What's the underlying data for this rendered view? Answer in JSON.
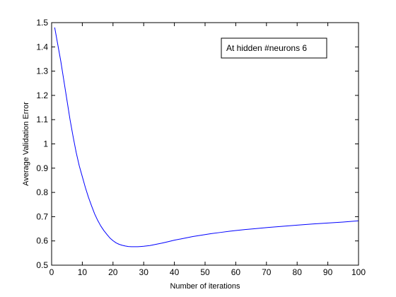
{
  "chart_data": {
    "type": "line",
    "title": "",
    "xlabel": "Number of iterations",
    "ylabel": "Average Validation Error",
    "xlim": [
      0,
      100
    ],
    "ylim": [
      0.5,
      1.5
    ],
    "xticks": [
      "0",
      "10",
      "20",
      "30",
      "40",
      "50",
      "60",
      "70",
      "80",
      "90",
      "100"
    ],
    "yticks": [
      "0.5",
      "0.6",
      "0.7",
      "0.8",
      "0.9",
      "1",
      "1.1",
      "1.2",
      "1.3",
      "1.4",
      "1.5"
    ],
    "grid": false,
    "legend": {
      "text": "At hidden #neurons 6",
      "position": "top-right"
    },
    "series": [
      {
        "color": "#0000ff",
        "x": [
          1,
          2,
          3,
          4,
          5,
          6,
          7,
          8,
          9,
          10,
          11,
          12,
          13,
          14,
          15,
          16,
          17,
          18,
          19,
          20,
          21,
          22,
          23,
          24,
          25,
          26,
          27,
          28,
          29,
          30,
          32,
          34,
          36,
          38,
          40,
          42,
          44,
          46,
          48,
          50,
          52,
          55,
          58,
          60,
          63,
          66,
          70,
          75,
          80,
          85,
          90,
          95,
          100
        ],
        "y": [
          1.48,
          1.41,
          1.34,
          1.26,
          1.18,
          1.1,
          1.03,
          0.965,
          0.91,
          0.865,
          0.82,
          0.78,
          0.745,
          0.712,
          0.685,
          0.662,
          0.643,
          0.627,
          0.612,
          0.601,
          0.592,
          0.586,
          0.582,
          0.579,
          0.577,
          0.576,
          0.576,
          0.576,
          0.577,
          0.578,
          0.581,
          0.586,
          0.591,
          0.597,
          0.603,
          0.608,
          0.613,
          0.618,
          0.622,
          0.626,
          0.63,
          0.635,
          0.64,
          0.643,
          0.647,
          0.65,
          0.655,
          0.66,
          0.665,
          0.67,
          0.674,
          0.678,
          0.683
        ]
      }
    ]
  }
}
